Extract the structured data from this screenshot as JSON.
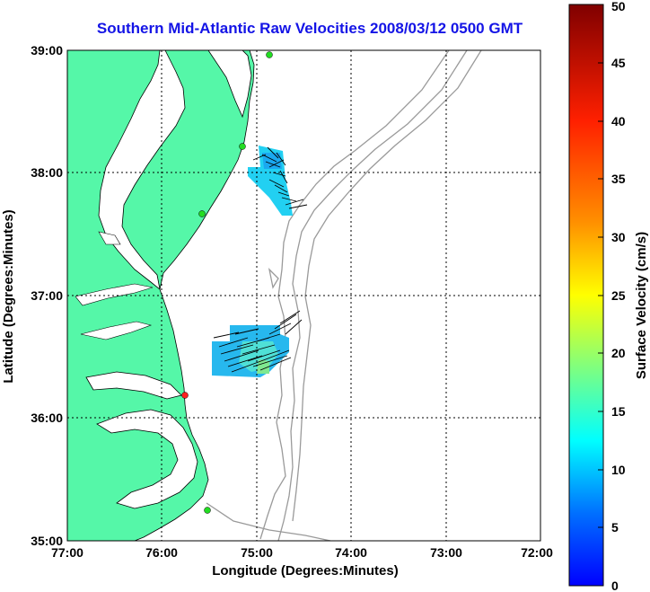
{
  "title": "Southern Mid-Atlantic Raw Velocities 2008/03/12 0500 GMT",
  "xlabel": "Longitude (Degrees:Minutes)",
  "ylabel": "Latitude (Degrees:Minutes)",
  "x_ticks": [
    "77:00",
    "76:00",
    "75:00",
    "74:00",
    "73:00",
    "72:00"
  ],
  "y_ticks": [
    "39:00",
    "38:00",
    "37:00",
    "36:00",
    "35:00"
  ],
  "colorbar": {
    "label": "Surface Velocity (cm/s)",
    "ticks": [
      "0",
      "5",
      "10",
      "15",
      "20",
      "25",
      "30",
      "35",
      "40",
      "45",
      "50"
    ],
    "min": 0,
    "max": 50
  },
  "colors": {
    "land": "#55f7a8",
    "contour": "#9a9a9a",
    "title": "#1414e6",
    "station_green": "#22dd22",
    "station_red": "#ff2020"
  },
  "chart_data": {
    "type": "map",
    "xlim": [
      -77,
      -72
    ],
    "ylim": [
      35,
      39
    ],
    "grid": true,
    "stations": [
      {
        "lon": -75.12,
        "lat": 38.97,
        "color": "green"
      },
      {
        "lon": -75.15,
        "lat": 38.22,
        "color": "green"
      },
      {
        "lon": -75.55,
        "lat": 37.67,
        "color": "green"
      },
      {
        "lon": -75.78,
        "lat": 36.18,
        "color": "red"
      },
      {
        "lon": -75.48,
        "lat": 35.25,
        "color": "green"
      }
    ],
    "velocity_fields": [
      {
        "lon_min": -75.1,
        "lon_max": -74.6,
        "lat_min": 37.68,
        "lat_max": 38.22,
        "speed": 10
      },
      {
        "lon_min": -75.5,
        "lon_max": -74.7,
        "lat_min": 36.35,
        "lat_max": 36.72,
        "speed": 11
      }
    ]
  }
}
